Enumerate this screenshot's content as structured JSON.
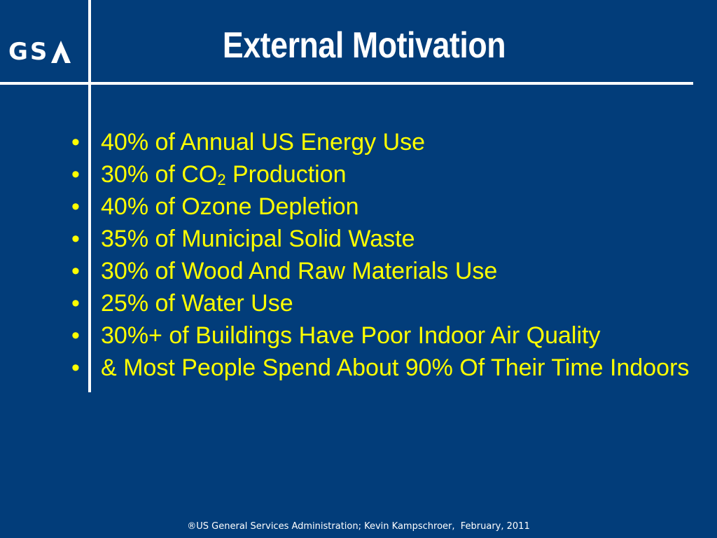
{
  "slide": {
    "title": "External Motivation",
    "logo_text": "GS",
    "logo_name": "GSA",
    "bullet_char": "•",
    "bullets": [
      {
        "text": "40% of Annual US Energy Use"
      },
      {
        "pre": "30% of CO",
        "sub": "2",
        "post": " Production"
      },
      {
        "text": "40% of Ozone Depletion"
      },
      {
        "text": "35% of Municipal Solid Waste"
      },
      {
        "text": "30% of Wood And Raw Materials Use"
      },
      {
        "text": "25% of Water Use"
      },
      {
        "text": "30%+ of Buildings Have Poor Indoor Air Quality"
      },
      {
        "text": "& Most People Spend About 90% Of Their Time Indoors"
      }
    ],
    "footer": "®US General Services Administration; Kevin Kampschroer,  February, 2011"
  },
  "colors": {
    "background": "#023d7a",
    "title": "#ffffff",
    "bullet_text": "#ffff00",
    "lines": "#ffffff"
  }
}
